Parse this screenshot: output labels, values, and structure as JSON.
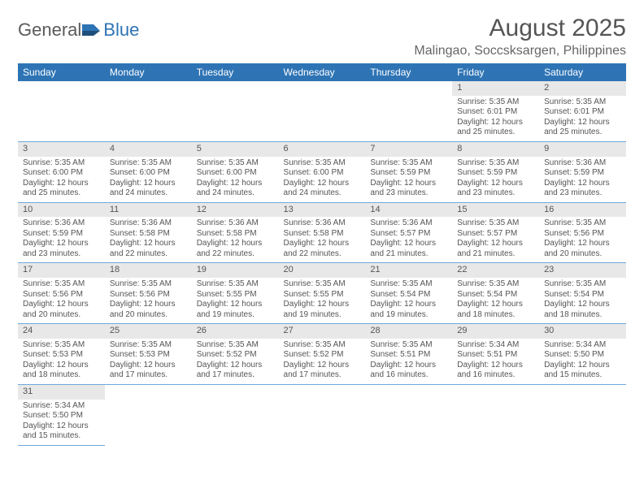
{
  "logo": {
    "partA": "General",
    "partB": "Blue"
  },
  "title": "August 2025",
  "location": "Malingao, Soccsksargen, Philippines",
  "colors": {
    "header_bg": "#2e74b5",
    "header_fg": "#ffffff",
    "daynum_bg": "#e8e8e8",
    "row_border": "#6fa8dc",
    "text": "#555555",
    "logo_blue": "#2e74b5"
  },
  "weekdays": [
    "Sunday",
    "Monday",
    "Tuesday",
    "Wednesday",
    "Thursday",
    "Friday",
    "Saturday"
  ],
  "weeks": [
    [
      null,
      null,
      null,
      null,
      null,
      {
        "n": "1",
        "sr": "Sunrise: 5:35 AM",
        "ss": "Sunset: 6:01 PM",
        "d1": "Daylight: 12 hours",
        "d2": "and 25 minutes."
      },
      {
        "n": "2",
        "sr": "Sunrise: 5:35 AM",
        "ss": "Sunset: 6:01 PM",
        "d1": "Daylight: 12 hours",
        "d2": "and 25 minutes."
      }
    ],
    [
      {
        "n": "3",
        "sr": "Sunrise: 5:35 AM",
        "ss": "Sunset: 6:00 PM",
        "d1": "Daylight: 12 hours",
        "d2": "and 25 minutes."
      },
      {
        "n": "4",
        "sr": "Sunrise: 5:35 AM",
        "ss": "Sunset: 6:00 PM",
        "d1": "Daylight: 12 hours",
        "d2": "and 24 minutes."
      },
      {
        "n": "5",
        "sr": "Sunrise: 5:35 AM",
        "ss": "Sunset: 6:00 PM",
        "d1": "Daylight: 12 hours",
        "d2": "and 24 minutes."
      },
      {
        "n": "6",
        "sr": "Sunrise: 5:35 AM",
        "ss": "Sunset: 6:00 PM",
        "d1": "Daylight: 12 hours",
        "d2": "and 24 minutes."
      },
      {
        "n": "7",
        "sr": "Sunrise: 5:35 AM",
        "ss": "Sunset: 5:59 PM",
        "d1": "Daylight: 12 hours",
        "d2": "and 23 minutes."
      },
      {
        "n": "8",
        "sr": "Sunrise: 5:35 AM",
        "ss": "Sunset: 5:59 PM",
        "d1": "Daylight: 12 hours",
        "d2": "and 23 minutes."
      },
      {
        "n": "9",
        "sr": "Sunrise: 5:36 AM",
        "ss": "Sunset: 5:59 PM",
        "d1": "Daylight: 12 hours",
        "d2": "and 23 minutes."
      }
    ],
    [
      {
        "n": "10",
        "sr": "Sunrise: 5:36 AM",
        "ss": "Sunset: 5:59 PM",
        "d1": "Daylight: 12 hours",
        "d2": "and 23 minutes."
      },
      {
        "n": "11",
        "sr": "Sunrise: 5:36 AM",
        "ss": "Sunset: 5:58 PM",
        "d1": "Daylight: 12 hours",
        "d2": "and 22 minutes."
      },
      {
        "n": "12",
        "sr": "Sunrise: 5:36 AM",
        "ss": "Sunset: 5:58 PM",
        "d1": "Daylight: 12 hours",
        "d2": "and 22 minutes."
      },
      {
        "n": "13",
        "sr": "Sunrise: 5:36 AM",
        "ss": "Sunset: 5:58 PM",
        "d1": "Daylight: 12 hours",
        "d2": "and 22 minutes."
      },
      {
        "n": "14",
        "sr": "Sunrise: 5:36 AM",
        "ss": "Sunset: 5:57 PM",
        "d1": "Daylight: 12 hours",
        "d2": "and 21 minutes."
      },
      {
        "n": "15",
        "sr": "Sunrise: 5:35 AM",
        "ss": "Sunset: 5:57 PM",
        "d1": "Daylight: 12 hours",
        "d2": "and 21 minutes."
      },
      {
        "n": "16",
        "sr": "Sunrise: 5:35 AM",
        "ss": "Sunset: 5:56 PM",
        "d1": "Daylight: 12 hours",
        "d2": "and 20 minutes."
      }
    ],
    [
      {
        "n": "17",
        "sr": "Sunrise: 5:35 AM",
        "ss": "Sunset: 5:56 PM",
        "d1": "Daylight: 12 hours",
        "d2": "and 20 minutes."
      },
      {
        "n": "18",
        "sr": "Sunrise: 5:35 AM",
        "ss": "Sunset: 5:56 PM",
        "d1": "Daylight: 12 hours",
        "d2": "and 20 minutes."
      },
      {
        "n": "19",
        "sr": "Sunrise: 5:35 AM",
        "ss": "Sunset: 5:55 PM",
        "d1": "Daylight: 12 hours",
        "d2": "and 19 minutes."
      },
      {
        "n": "20",
        "sr": "Sunrise: 5:35 AM",
        "ss": "Sunset: 5:55 PM",
        "d1": "Daylight: 12 hours",
        "d2": "and 19 minutes."
      },
      {
        "n": "21",
        "sr": "Sunrise: 5:35 AM",
        "ss": "Sunset: 5:54 PM",
        "d1": "Daylight: 12 hours",
        "d2": "and 19 minutes."
      },
      {
        "n": "22",
        "sr": "Sunrise: 5:35 AM",
        "ss": "Sunset: 5:54 PM",
        "d1": "Daylight: 12 hours",
        "d2": "and 18 minutes."
      },
      {
        "n": "23",
        "sr": "Sunrise: 5:35 AM",
        "ss": "Sunset: 5:54 PM",
        "d1": "Daylight: 12 hours",
        "d2": "and 18 minutes."
      }
    ],
    [
      {
        "n": "24",
        "sr": "Sunrise: 5:35 AM",
        "ss": "Sunset: 5:53 PM",
        "d1": "Daylight: 12 hours",
        "d2": "and 18 minutes."
      },
      {
        "n": "25",
        "sr": "Sunrise: 5:35 AM",
        "ss": "Sunset: 5:53 PM",
        "d1": "Daylight: 12 hours",
        "d2": "and 17 minutes."
      },
      {
        "n": "26",
        "sr": "Sunrise: 5:35 AM",
        "ss": "Sunset: 5:52 PM",
        "d1": "Daylight: 12 hours",
        "d2": "and 17 minutes."
      },
      {
        "n": "27",
        "sr": "Sunrise: 5:35 AM",
        "ss": "Sunset: 5:52 PM",
        "d1": "Daylight: 12 hours",
        "d2": "and 17 minutes."
      },
      {
        "n": "28",
        "sr": "Sunrise: 5:35 AM",
        "ss": "Sunset: 5:51 PM",
        "d1": "Daylight: 12 hours",
        "d2": "and 16 minutes."
      },
      {
        "n": "29",
        "sr": "Sunrise: 5:34 AM",
        "ss": "Sunset: 5:51 PM",
        "d1": "Daylight: 12 hours",
        "d2": "and 16 minutes."
      },
      {
        "n": "30",
        "sr": "Sunrise: 5:34 AM",
        "ss": "Sunset: 5:50 PM",
        "d1": "Daylight: 12 hours",
        "d2": "and 15 minutes."
      }
    ],
    [
      {
        "n": "31",
        "sr": "Sunrise: 5:34 AM",
        "ss": "Sunset: 5:50 PM",
        "d1": "Daylight: 12 hours",
        "d2": "and 15 minutes."
      },
      null,
      null,
      null,
      null,
      null,
      null
    ]
  ]
}
